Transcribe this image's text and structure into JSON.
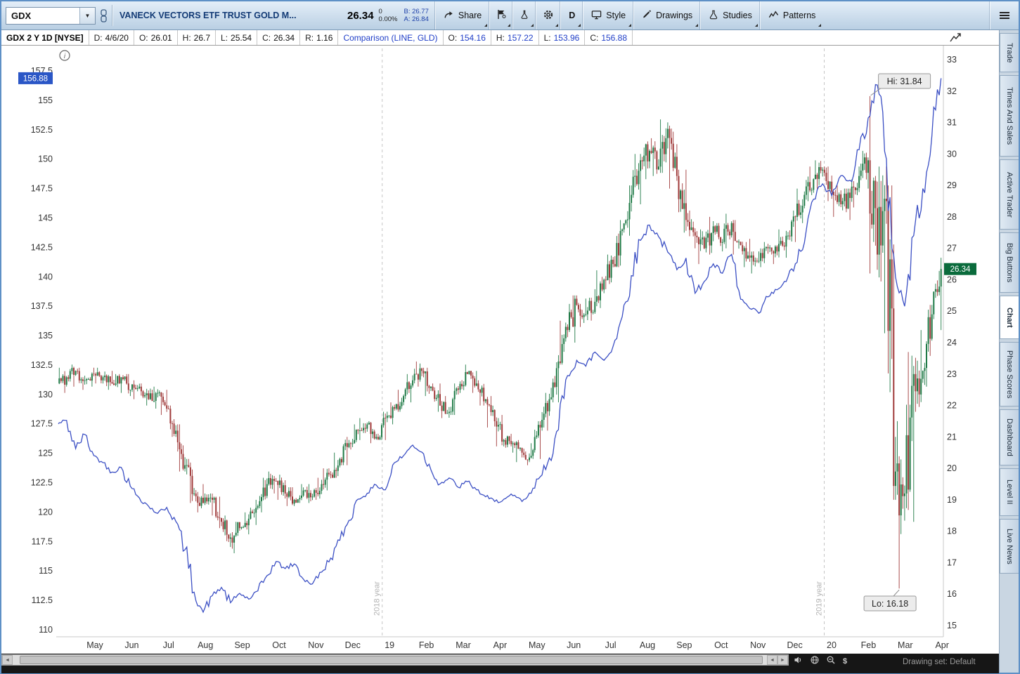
{
  "toolbar": {
    "symbol_input": "GDX",
    "symbol_description": "VANECK VECTORS ETF TRUST GOLD M...",
    "last_price": "26.34",
    "change": "0",
    "change_percent": "0.00%",
    "bid": "B: 26.77",
    "ask": "A: 26.84",
    "share_label": "Share",
    "timeframe_label": "D",
    "style_label": "Style",
    "drawings_label": "Drawings",
    "studies_label": "Studies",
    "patterns_label": "Patterns"
  },
  "icons": {
    "dropdown_arrow": "▼",
    "scroll_left": "◄",
    "scroll_right": "►",
    "dollar": "$"
  },
  "chart_header": {
    "title": "GDX 2 Y 1D [NYSE]",
    "fields": [
      {
        "label": "D:",
        "value": "4/6/20"
      },
      {
        "label": "O:",
        "value": "26.01"
      },
      {
        "label": "H:",
        "value": "26.7"
      },
      {
        "label": "L:",
        "value": "25.54"
      },
      {
        "label": "C:",
        "value": "26.34"
      },
      {
        "label": "R:",
        "value": "1.16"
      }
    ],
    "comparison_title": "Comparison (LINE, GLD)",
    "comparison_fields": [
      {
        "label": "O:",
        "value": "154.16"
      },
      {
        "label": "H:",
        "value": "157.22"
      },
      {
        "label": "L:",
        "value": "153.96"
      },
      {
        "label": "C:",
        "value": "156.88"
      }
    ]
  },
  "chart": {
    "left_axis_badge": "156.88",
    "right_axis_badge": "26.34",
    "hi_label": "Hi: 31.84",
    "lo_label": "Lo: 16.18",
    "year_markers": [
      "2018 year",
      "2019 year"
    ]
  },
  "sidebar_tabs": {
    "items": [
      "Trade",
      "Times And Sales",
      "Active Trader",
      "Big Buttons",
      "Chart",
      "Phase Scores",
      "Dashboard",
      "Level II",
      "Live News"
    ],
    "active": "Chart"
  },
  "status_bar": {
    "drawing_set": "Drawing set: Default"
  },
  "colors": {
    "up_candle": "#1f7a46",
    "down_candle": "#a03a3a",
    "comparison_line": "#3b4fc4",
    "left_badge_bg": "#2a56c6",
    "right_badge_bg": "#0a6b3c"
  },
  "chart_data": {
    "type": "candlestick_with_comparison_line",
    "main_symbol": "GDX",
    "comparison_symbol": "GLD",
    "timeframe": "2 Y 1D",
    "last_date": "4/6/20",
    "gdx_last": 26.34,
    "gld_last": 156.88,
    "gdx_high_2y": 31.84,
    "gdx_low_2y": 16.18,
    "x_labels": [
      "May",
      "Jun",
      "Jul",
      "Aug",
      "Sep",
      "Oct",
      "Nov",
      "Dec",
      "19",
      "Feb",
      "Mar",
      "Apr",
      "May",
      "Jun",
      "Jul",
      "Aug",
      "Sep",
      "Oct",
      "Nov",
      "Dec",
      "20",
      "Feb",
      "Mar",
      "Apr"
    ],
    "right_axis_ticks": [
      33,
      32,
      31,
      30,
      29,
      28,
      27,
      26,
      25,
      24,
      23,
      22,
      21,
      20,
      19,
      18,
      17,
      16,
      15
    ],
    "left_axis_ticks": [
      157.5,
      155,
      152.5,
      150,
      147.5,
      145,
      142.5,
      140,
      137.5,
      135,
      132.5,
      130,
      127.5,
      125,
      122.5,
      120,
      117.5,
      115,
      112.5,
      110
    ],
    "gld_start": 127.5,
    "gdx_weekly_ohlc": [
      [
        22.7,
        23.2,
        22.4,
        22.9
      ],
      [
        22.9,
        23.3,
        22.6,
        23.1
      ],
      [
        23.1,
        23.2,
        22.5,
        22.8
      ],
      [
        22.8,
        23.2,
        22.6,
        23.0
      ],
      [
        23.0,
        23.2,
        22.7,
        22.9
      ],
      [
        22.9,
        23.1,
        22.5,
        22.7
      ],
      [
        22.7,
        23.0,
        22.4,
        22.9
      ],
      [
        22.9,
        23.0,
        22.3,
        22.5
      ],
      [
        22.5,
        22.8,
        22.2,
        22.6
      ],
      [
        22.6,
        22.7,
        22.0,
        22.2
      ],
      [
        22.2,
        22.6,
        21.9,
        22.4
      ],
      [
        22.4,
        22.5,
        21.7,
        21.9
      ],
      [
        21.9,
        22.0,
        21.0,
        21.2
      ],
      [
        21.2,
        21.4,
        19.9,
        20.1
      ],
      [
        20.1,
        20.3,
        18.9,
        19.2
      ],
      [
        19.2,
        19.5,
        18.6,
        18.9
      ],
      [
        18.9,
        19.2,
        18.5,
        19.0
      ],
      [
        19.0,
        19.1,
        18.1,
        18.3
      ],
      [
        18.3,
        18.5,
        17.5,
        17.8
      ],
      [
        17.8,
        18.3,
        17.3,
        18.1
      ],
      [
        18.1,
        18.6,
        17.9,
        18.4
      ],
      [
        18.4,
        19.0,
        18.2,
        18.8
      ],
      [
        18.8,
        19.7,
        18.6,
        19.5
      ],
      [
        19.5,
        19.9,
        19.2,
        19.6
      ],
      [
        19.6,
        19.8,
        19.0,
        19.2
      ],
      [
        19.2,
        19.4,
        18.8,
        19.0
      ],
      [
        19.0,
        19.5,
        18.9,
        19.3
      ],
      [
        19.3,
        19.5,
        18.9,
        19.1
      ],
      [
        19.1,
        19.7,
        19.0,
        19.5
      ],
      [
        19.5,
        20.0,
        19.3,
        19.8
      ],
      [
        19.8,
        20.5,
        19.7,
        20.3
      ],
      [
        20.3,
        21.0,
        20.1,
        20.8
      ],
      [
        20.8,
        21.4,
        20.6,
        21.2
      ],
      [
        21.2,
        21.6,
        20.9,
        21.4
      ],
      [
        21.4,
        21.5,
        20.8,
        21.0
      ],
      [
        21.0,
        21.8,
        20.9,
        21.6
      ],
      [
        21.6,
        22.1,
        21.4,
        21.9
      ],
      [
        21.9,
        22.5,
        21.8,
        22.3
      ],
      [
        22.3,
        23.0,
        22.1,
        22.8
      ],
      [
        22.8,
        23.4,
        22.6,
        23.1
      ],
      [
        23.1,
        23.2,
        22.3,
        22.6
      ],
      [
        22.6,
        22.7,
        21.8,
        22.0
      ],
      [
        22.0,
        22.3,
        21.6,
        21.8
      ],
      [
        21.8,
        22.7,
        21.7,
        22.5
      ],
      [
        22.5,
        23.3,
        22.4,
        23.0
      ],
      [
        23.0,
        23.1,
        22.4,
        22.7
      ],
      [
        22.7,
        22.8,
        22.0,
        22.2
      ],
      [
        22.2,
        22.3,
        21.3,
        21.5
      ],
      [
        21.5,
        21.7,
        20.7,
        20.9
      ],
      [
        20.9,
        21.1,
        20.5,
        20.8
      ],
      [
        20.8,
        20.9,
        20.2,
        20.5
      ],
      [
        20.5,
        20.8,
        20.1,
        20.4
      ],
      [
        20.4,
        21.5,
        20.3,
        21.3
      ],
      [
        21.3,
        22.4,
        21.2,
        22.2
      ],
      [
        22.2,
        23.6,
        22.1,
        23.4
      ],
      [
        23.4,
        24.7,
        23.3,
        24.4
      ],
      [
        24.4,
        25.5,
        24.0,
        25.2
      ],
      [
        25.2,
        25.4,
        24.5,
        24.9
      ],
      [
        24.9,
        25.7,
        24.7,
        25.3
      ],
      [
        25.3,
        26.3,
        25.1,
        26.0
      ],
      [
        26.0,
        26.8,
        25.7,
        26.5
      ],
      [
        26.5,
        27.9,
        26.4,
        27.6
      ],
      [
        27.6,
        29.0,
        27.4,
        28.7
      ],
      [
        28.7,
        30.0,
        28.4,
        29.8
      ],
      [
        29.8,
        30.4,
        29.2,
        30.1
      ],
      [
        30.1,
        30.5,
        29.3,
        29.6
      ],
      [
        29.6,
        31.1,
        29.4,
        30.8
      ],
      [
        30.8,
        30.9,
        28.9,
        29.3
      ],
      [
        29.3,
        29.5,
        27.5,
        27.9
      ],
      [
        27.9,
        28.2,
        27.0,
        27.4
      ],
      [
        27.4,
        27.6,
        26.5,
        27.0
      ],
      [
        27.0,
        28.0,
        26.8,
        27.7
      ],
      [
        27.7,
        27.8,
        26.9,
        27.2
      ],
      [
        27.2,
        28.1,
        27.0,
        27.8
      ],
      [
        27.8,
        27.9,
        26.8,
        27.1
      ],
      [
        27.1,
        27.3,
        26.4,
        26.7
      ],
      [
        26.7,
        26.9,
        26.2,
        26.6
      ],
      [
        26.6,
        27.2,
        26.4,
        27.0
      ],
      [
        27.0,
        27.1,
        26.5,
        26.9
      ],
      [
        26.9,
        27.6,
        26.7,
        27.4
      ],
      [
        27.4,
        28.2,
        27.2,
        28.0
      ],
      [
        28.0,
        28.9,
        27.8,
        28.7
      ],
      [
        28.7,
        29.6,
        28.5,
        29.2
      ],
      [
        29.2,
        29.8,
        28.9,
        29.5
      ],
      [
        29.5,
        29.6,
        28.5,
        28.8
      ],
      [
        28.8,
        29.0,
        28.0,
        28.4
      ],
      [
        28.4,
        28.9,
        27.9,
        28.6
      ],
      [
        28.6,
        29.6,
        28.3,
        29.3
      ],
      [
        29.3,
        30.1,
        28.9,
        29.8
      ],
      [
        29.8,
        31.84,
        26.2,
        26.8
      ],
      [
        26.8,
        29.6,
        24.3,
        28.5
      ],
      [
        28.5,
        29.0,
        19.0,
        19.9
      ],
      [
        19.9,
        21.5,
        16.18,
        19.2
      ],
      [
        19.2,
        23.7,
        18.3,
        23.0
      ],
      [
        23.0,
        24.4,
        21.8,
        23.1
      ],
      [
        23.1,
        25.2,
        22.6,
        24.9
      ],
      [
        24.9,
        26.7,
        24.4,
        26.34
      ]
    ],
    "gld_weekly_close": [
      127.8,
      125.4,
      126.6,
      124.8,
      124.2,
      123.4,
      123.8,
      122.2,
      121.2,
      120.5,
      119.9,
      120.4,
      119.2,
      116.8,
      113.2,
      111.5,
      112.9,
      113.6,
      112.3,
      113.1,
      112.6,
      113.3,
      114.6,
      115.8,
      115.2,
      115.6,
      114.3,
      113.9,
      114.9,
      116.1,
      117.6,
      119.3,
      121.1,
      121.6,
      122.3,
      121.9,
      124.2,
      124.8,
      125.7,
      125.1,
      123.6,
      122.4,
      122.9,
      122.1,
      122.6,
      121.9,
      121.3,
      120.9,
      121.1,
      121.4,
      120.9,
      121.6,
      123.0,
      124.6,
      127.0,
      131.6,
      132.9,
      132.4,
      133.6,
      132.9,
      134.1,
      136.6,
      140.1,
      143.1,
      144.4,
      143.4,
      142.1,
      140.6,
      141.6,
      138.6,
      139.6,
      141.1,
      140.3,
      141.9,
      138.1,
      137.3,
      136.9,
      138.3,
      138.9,
      139.6,
      141.1,
      142.9,
      146.6,
      147.9,
      146.9,
      148.6,
      148.2,
      150.8,
      153.5,
      156.3,
      150.0,
      140.0,
      137.5,
      143.5,
      147.5,
      152.0,
      156.88
    ]
  }
}
